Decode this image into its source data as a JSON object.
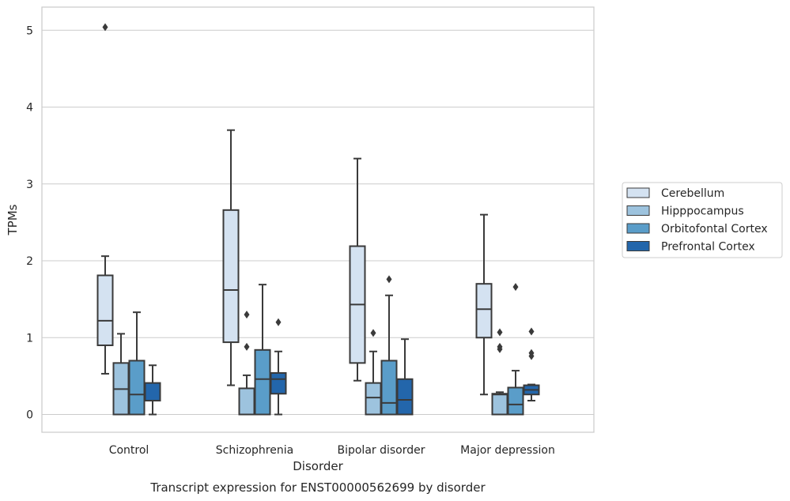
{
  "chart_data": {
    "type": "boxplot",
    "title": "",
    "caption": "Transcript expression for ENST00000562699 by disorder",
    "xlabel": "Disorder",
    "ylabel": "TPMs",
    "ylim": [
      -0.25,
      5.3
    ],
    "yticks": [
      0,
      1,
      2,
      3,
      4,
      5
    ],
    "grid": "horizontal",
    "legend_position": "right",
    "categories": [
      "Control",
      "Schizophrenia",
      "Bipolar disorder",
      "Major depression"
    ],
    "series": [
      {
        "name": "Cerebellum",
        "color": "#d4e2f1",
        "boxes": [
          {
            "min": 0.53,
            "q1": 0.9,
            "median": 1.22,
            "q3": 1.81,
            "max": 2.06,
            "outliers": [
              5.04
            ]
          },
          {
            "min": 0.38,
            "q1": 0.94,
            "median": 1.62,
            "q3": 2.66,
            "max": 3.7,
            "outliers": []
          },
          {
            "min": 0.44,
            "q1": 0.67,
            "median": 1.43,
            "q3": 2.19,
            "max": 3.33,
            "outliers": []
          },
          {
            "min": 0.26,
            "q1": 1.0,
            "median": 1.37,
            "q3": 1.7,
            "max": 2.6,
            "outliers": []
          }
        ]
      },
      {
        "name": "Hipppocampus",
        "color": "#9dc3de",
        "boxes": [
          {
            "min": 0.0,
            "q1": 0.0,
            "median": 0.33,
            "q3": 0.67,
            "max": 1.05,
            "outliers": []
          },
          {
            "min": 0.0,
            "q1": 0.0,
            "median": 0.0,
            "q3": 0.34,
            "max": 0.51,
            "outliers": [
              0.88,
              1.3
            ]
          },
          {
            "min": 0.0,
            "q1": 0.0,
            "median": 0.22,
            "q3": 0.41,
            "max": 0.82,
            "outliers": [
              1.06
            ]
          },
          {
            "min": 0.0,
            "q1": 0.0,
            "median": 0.26,
            "q3": 0.27,
            "max": 0.29,
            "outliers": [
              0.85,
              0.88,
              1.07
            ]
          }
        ]
      },
      {
        "name": "Orbitofontal Cortex",
        "color": "#5a9dc9",
        "boxes": [
          {
            "min": 0.0,
            "q1": 0.0,
            "median": 0.26,
            "q3": 0.7,
            "max": 1.33,
            "outliers": []
          },
          {
            "min": 0.0,
            "q1": 0.0,
            "median": 0.46,
            "q3": 0.84,
            "max": 1.69,
            "outliers": []
          },
          {
            "min": 0.0,
            "q1": 0.0,
            "median": 0.15,
            "q3": 0.7,
            "max": 1.55,
            "outliers": [
              1.76
            ]
          },
          {
            "min": 0.0,
            "q1": 0.0,
            "median": 0.13,
            "q3": 0.35,
            "max": 0.57,
            "outliers": [
              1.66
            ]
          }
        ]
      },
      {
        "name": "Prefrontal Cortex",
        "color": "#2366ab",
        "boxes": [
          {
            "min": 0.0,
            "q1": 0.18,
            "median": 0.18,
            "q3": 0.41,
            "max": 0.64,
            "outliers": []
          },
          {
            "min": 0.0,
            "q1": 0.27,
            "median": 0.46,
            "q3": 0.54,
            "max": 0.82,
            "outliers": [
              1.2
            ]
          },
          {
            "min": 0.0,
            "q1": 0.0,
            "median": 0.19,
            "q3": 0.46,
            "max": 0.98,
            "outliers": []
          },
          {
            "min": 0.18,
            "q1": 0.26,
            "median": 0.32,
            "q3": 0.38,
            "max": 0.39,
            "outliers": [
              0.76,
              0.8,
              1.08
            ]
          }
        ]
      }
    ]
  }
}
